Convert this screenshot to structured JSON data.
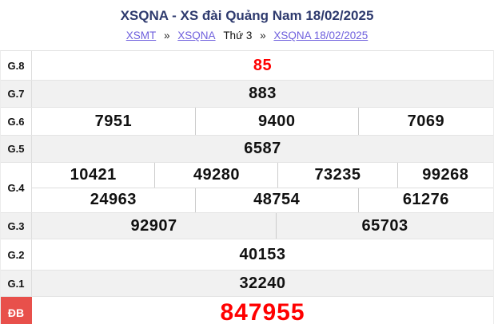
{
  "header": {
    "title": "XSQNA - XS đài Quảng Nam 18/02/2025",
    "breadcrumb": [
      {
        "label": "XSMT",
        "link": true
      },
      {
        "label": "»",
        "link": false
      },
      {
        "label": "XSQNA",
        "link": true
      },
      {
        "label": "Thứ 3",
        "link": false
      },
      {
        "label": "»",
        "link": false
      },
      {
        "label": "XSQNA 18/02/2025",
        "link": true
      }
    ]
  },
  "table": {
    "rows": [
      {
        "label": "G.8",
        "groups": [
          [
            "85"
          ]
        ],
        "highlight": true
      },
      {
        "label": "G.7",
        "groups": [
          [
            "883"
          ]
        ]
      },
      {
        "label": "G.6",
        "groups": [
          [
            "7951",
            "9400",
            "7069"
          ]
        ]
      },
      {
        "label": "G.5",
        "groups": [
          [
            "6587"
          ]
        ]
      },
      {
        "label": "G.4",
        "groups": [
          [
            "10421",
            "49280",
            "73235",
            "99268"
          ],
          [
            "24963",
            "48754",
            "61276"
          ]
        ]
      },
      {
        "label": "G.3",
        "groups": [
          [
            "92907",
            "65703"
          ]
        ]
      },
      {
        "label": "G.2",
        "groups": [
          [
            "40153"
          ]
        ]
      },
      {
        "label": "G.1",
        "groups": [
          [
            "32240"
          ]
        ]
      },
      {
        "label": "ĐB",
        "groups": [
          [
            "847955"
          ]
        ],
        "highlight": true,
        "special": true
      }
    ]
  },
  "colors": {
    "title": "#2e3a6e",
    "link": "#6e5fdd",
    "highlight_number": "#ff0000",
    "special_badge_bg": "#e8504b",
    "row_alt_bg": "#f1f1f1"
  }
}
